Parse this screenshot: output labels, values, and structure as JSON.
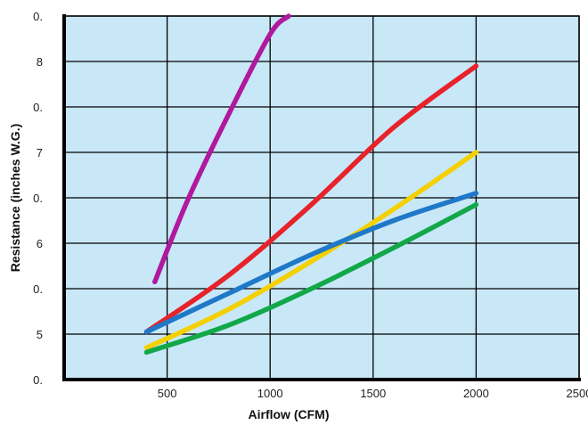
{
  "chart_data": {
    "type": "line",
    "xlabel": "Airflow (CFM)",
    "ylabel": "Resistance (inches W.G.)",
    "xlim": [
      0,
      2500
    ],
    "ylim": [
      0,
      8
    ],
    "grid": true,
    "x_ticks": [
      {
        "value": 500,
        "label": "500"
      },
      {
        "value": 1000,
        "label": "1000"
      },
      {
        "value": 1500,
        "label": "1500"
      },
      {
        "value": 2000,
        "label": "2000"
      },
      {
        "value": 2500,
        "label": "2500"
      }
    ],
    "y_ticks": [
      {
        "value": 0,
        "label": "0."
      },
      {
        "value": 1,
        "label": "5"
      },
      {
        "value": 2,
        "label": "0."
      },
      {
        "value": 3,
        "label": "6"
      },
      {
        "value": 4,
        "label": "0."
      },
      {
        "value": 5,
        "label": "7"
      },
      {
        "value": 6,
        "label": "0."
      },
      {
        "value": 7,
        "label": "8"
      },
      {
        "value": 8,
        "label": "0."
      }
    ],
    "series": [
      {
        "color": "#b0199e",
        "x": [
          440,
          600,
          800,
          1000,
          1090
        ],
        "y": [
          2.15,
          3.95,
          5.85,
          7.6,
          8.0
        ]
      },
      {
        "color": "#e8222a",
        "x": [
          400,
          800,
          1200,
          1600,
          2000
        ],
        "y": [
          1.05,
          2.3,
          3.85,
          5.55,
          6.9
        ]
      },
      {
        "color": "#f5d000",
        "x": [
          400,
          800,
          1200,
          1600,
          2000
        ],
        "y": [
          0.7,
          1.55,
          2.6,
          3.75,
          5.0
        ]
      },
      {
        "color": "#1f78c8",
        "x": [
          400,
          800,
          1200,
          1600,
          2000
        ],
        "y": [
          1.05,
          1.9,
          2.75,
          3.5,
          4.1
        ]
      },
      {
        "color": "#12a84a",
        "x": [
          400,
          800,
          1200,
          1600,
          2000
        ],
        "y": [
          0.6,
          1.2,
          2.0,
          2.9,
          3.85
        ]
      }
    ]
  }
}
